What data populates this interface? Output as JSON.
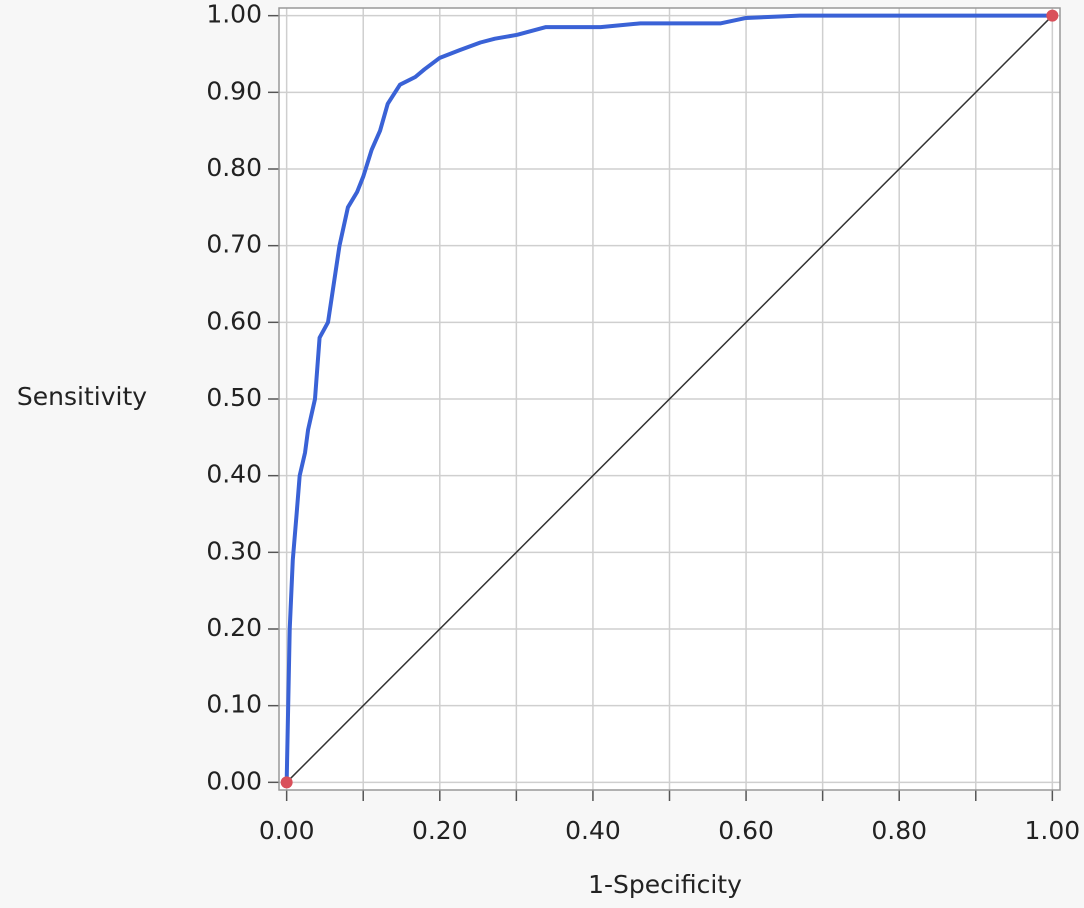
{
  "chart_data": {
    "type": "line",
    "xlabel": "1-Specificity",
    "ylabel": "Sensitivity",
    "x": [
      0,
      0.004,
      0.008,
      0.013,
      0.017,
      0.024,
      0.028,
      0.037,
      0.043,
      0.054,
      0.06,
      0.069,
      0.08,
      0.092,
      0.1,
      0.111,
      0.122,
      0.132,
      0.148,
      0.168,
      0.18,
      0.2,
      0.226,
      0.253,
      0.272,
      0.301,
      0.338,
      0.41,
      0.462,
      0.567,
      0.6,
      0.67,
      1
    ],
    "values": [
      0,
      0.2,
      0.29,
      0.35,
      0.4,
      0.43,
      0.46,
      0.5,
      0.58,
      0.6,
      0.64,
      0.7,
      0.75,
      0.77,
      0.79,
      0.825,
      0.85,
      0.885,
      0.91,
      0.92,
      0.93,
      0.945,
      0.955,
      0.965,
      0.97,
      0.975,
      0.985,
      0.985,
      0.99,
      0.99,
      0.997,
      1,
      1
    ],
    "color": "#3a62d6",
    "markers": {
      "x": [
        0,
        1
      ],
      "y": [
        0,
        1
      ],
      "color": "#d9505a"
    },
    "xlim": [
      -0.01,
      1.01
    ],
    "ylim": [
      -0.01,
      1.01
    ],
    "xticks": [
      {
        "value": 0,
        "label": "0.00"
      },
      {
        "value": 0.2,
        "label": "0.20"
      },
      {
        "value": 0.4,
        "label": "0.40"
      },
      {
        "value": 0.6,
        "label": "0.60"
      },
      {
        "value": 0.8,
        "label": "0.80"
      },
      {
        "value": 1,
        "label": "1.00"
      }
    ],
    "xminor_ticks": [
      0.1,
      0.3,
      0.5,
      0.7,
      0.9
    ],
    "yticks": [
      {
        "value": 0,
        "label": "0.00"
      },
      {
        "value": 0.1,
        "label": "0.10"
      },
      {
        "value": 0.2,
        "label": "0.20"
      },
      {
        "value": 0.3,
        "label": "0.30"
      },
      {
        "value": 0.4,
        "label": "0.40"
      },
      {
        "value": 0.5,
        "label": "0.50"
      },
      {
        "value": 0.6,
        "label": "0.60"
      },
      {
        "value": 0.7,
        "label": "0.70"
      },
      {
        "value": 0.8,
        "label": "0.80"
      },
      {
        "value": 0.9,
        "label": "0.90"
      },
      {
        "value": 1,
        "label": "1.00"
      }
    ],
    "grid": true
  }
}
